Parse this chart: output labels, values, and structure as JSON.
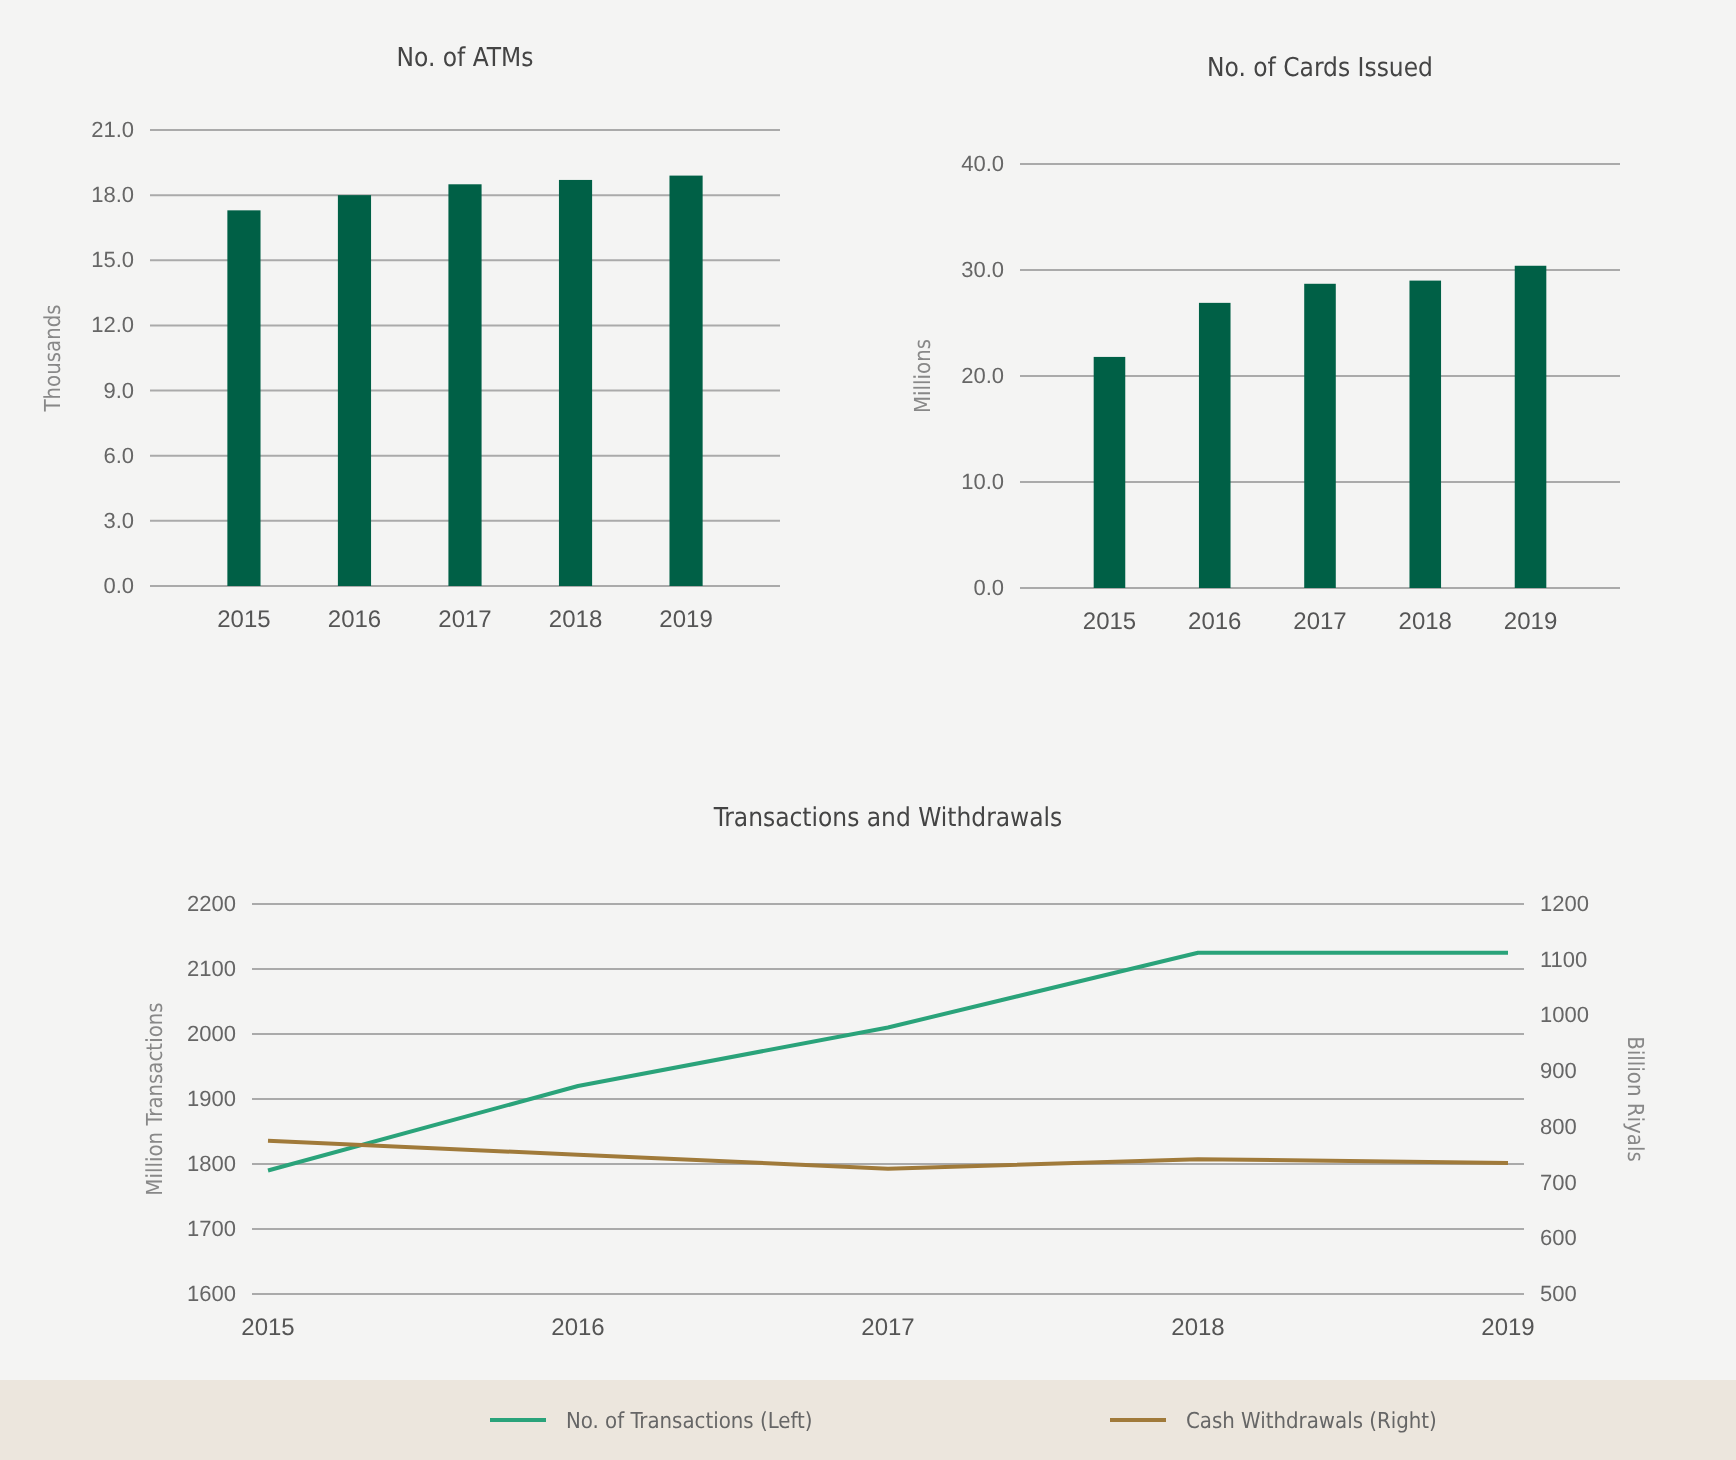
{
  "chart_data": [
    {
      "type": "bar",
      "title": "No. of ATMs",
      "ylabel": "Thousands",
      "categories": [
        "2015",
        "2016",
        "2017",
        "2018",
        "2019"
      ],
      "values": [
        17.3,
        18.0,
        18.5,
        18.7,
        18.9
      ],
      "color": "#006046",
      "ylim": [
        0,
        21
      ],
      "yticks": [
        {
          "value": 0,
          "label": "0.0"
        },
        {
          "value": 3,
          "label": "3.0"
        },
        {
          "value": 6,
          "label": "6.0"
        },
        {
          "value": 9,
          "label": "9.0"
        },
        {
          "value": 12,
          "label": "12.0"
        },
        {
          "value": 15,
          "label": "15.0"
        },
        {
          "value": 18,
          "label": "18.0"
        },
        {
          "value": 21,
          "label": "21.0"
        }
      ],
      "grid": "y"
    },
    {
      "type": "bar",
      "title": "No. of Cards Issued",
      "ylabel": "Millions",
      "categories": [
        "2015",
        "2016",
        "2017",
        "2018",
        "2019"
      ],
      "values": [
        21.8,
        26.9,
        28.7,
        29.0,
        30.4
      ],
      "color": "#006046",
      "ylim": [
        0,
        40
      ],
      "yticks": [
        {
          "value": 0,
          "label": "0.0"
        },
        {
          "value": 10,
          "label": "10.0"
        },
        {
          "value": 20,
          "label": "20.0"
        },
        {
          "value": 30,
          "label": "30.0"
        },
        {
          "value": 40,
          "label": "40.0"
        }
      ],
      "grid": "y"
    },
    {
      "type": "line",
      "title": "Transactions and Withdrawals",
      "ylabel": "Million  Transactions",
      "y2label": "Billion Riyals",
      "categories": [
        "2015",
        "2016",
        "2017",
        "2018",
        "2019"
      ],
      "series": [
        {
          "name": "No. of Transactions (Left)",
          "color": "#2aa37a",
          "values": [
            1790,
            1920,
            2010,
            2125,
            2125
          ]
        },
        {
          "name": "Cash Withdrawals (Right)",
          "color": "#a07a3a",
          "axis": "y2",
          "values": [
            775,
            750,
            725,
            742,
            735
          ]
        }
      ],
      "ylim": [
        1600,
        2200
      ],
      "yticks": [
        1600,
        1700,
        1800,
        1900,
        2000,
        2100,
        2200
      ],
      "y2lim": [
        500,
        1200
      ],
      "y2ticks": [
        500,
        600,
        700,
        800,
        900,
        1000,
        1100,
        1200
      ],
      "grid": "y",
      "legend": "bottom",
      "marker": "none",
      "line_style": "solid"
    }
  ]
}
